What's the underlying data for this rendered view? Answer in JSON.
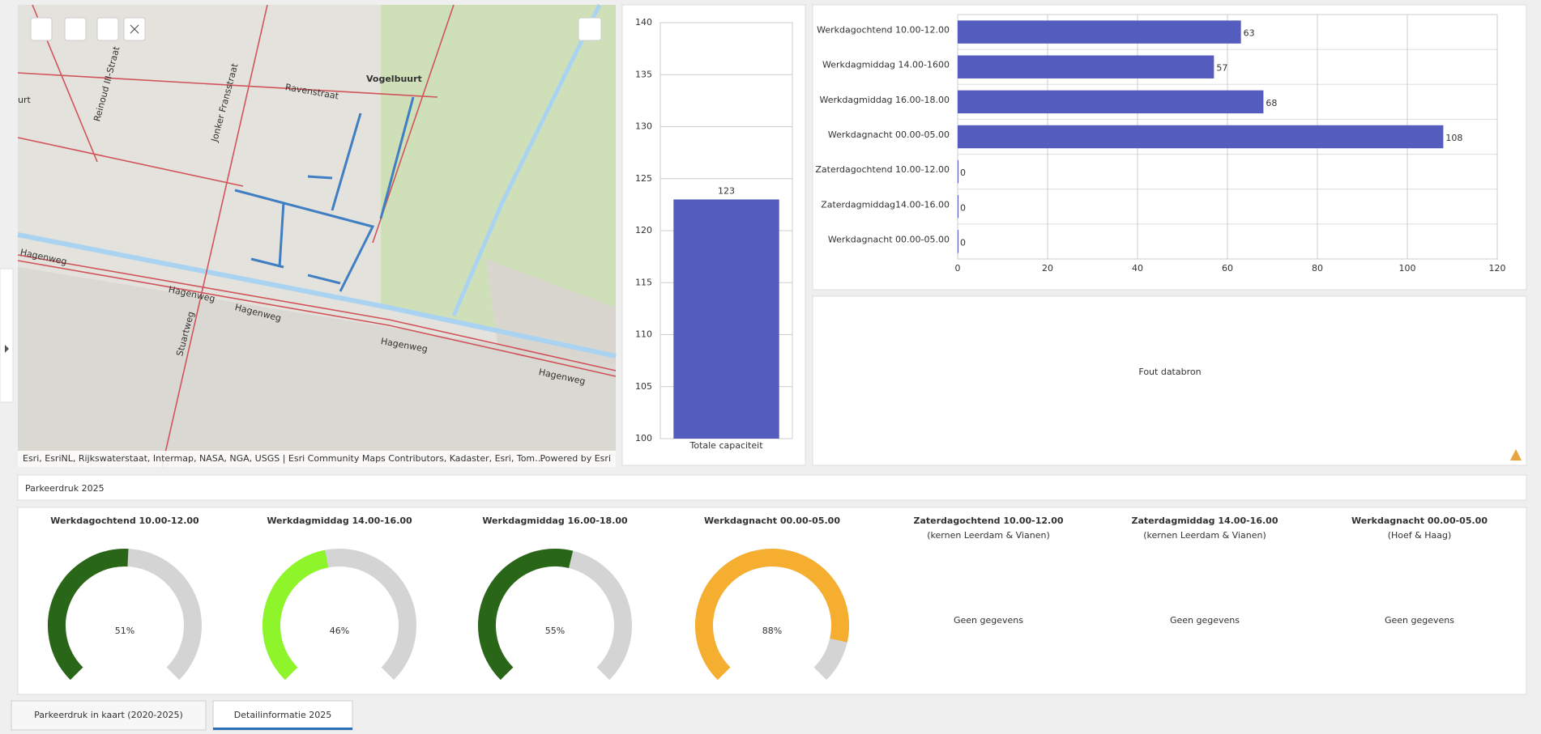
{
  "map": {
    "labels": [
      "Vogelbuurt",
      "Ravenstraat",
      "urt",
      "Reinoud III-Straat",
      "Jonker Fransstraat",
      "Hagenweg",
      "Hagenweg",
      "Hagenweg",
      "Hagenweg",
      "Hagenweg",
      "Stuartweg"
    ],
    "attribution": "Esri, EsriNL, Rijkswaterstaat, Intermap, NASA, NGA, USGS | Esri Community Maps Contributors, Kadaster, Esri, Tom…",
    "powered_by": "Powered by Esri"
  },
  "chart_data": [
    {
      "type": "bar",
      "categories": [
        "Totale capaciteit"
      ],
      "values": [
        123
      ],
      "color": "#545cbd",
      "ylim": [
        100,
        140
      ],
      "yticks": [
        100,
        105,
        110,
        115,
        120,
        125,
        130,
        135,
        140
      ],
      "grid": true
    },
    {
      "type": "hbar",
      "categories": [
        "Werkdagochtend 10.00-12.00",
        "Werkdagmiddag 14.00-1600",
        "Werkdagmiddag 16.00-18.00",
        "Werkdagnacht 00.00-05.00",
        "Zaterdagochtend 10.00-12.00",
        "Zaterdagmiddag14.00-16.00",
        "Werkdagnacht 00.00-05.00"
      ],
      "values": [
        63,
        57,
        68,
        108,
        0,
        0,
        0
      ],
      "color": "#545cbd",
      "xlim": [
        0,
        120
      ],
      "xticks": [
        0,
        20,
        40,
        60,
        80,
        100,
        120
      ],
      "grid": true
    }
  ],
  "error_panel": {
    "message": "Fout databron"
  },
  "section_title": "Parkeerdruk 2025",
  "gauge_range": [
    0,
    100
  ],
  "gauges": [
    {
      "title": "Werkdagochtend 10.00-12.00",
      "value": 51,
      "value_label": "51%",
      "color": "#2a6617"
    },
    {
      "title": "Werkdagmiddag 14.00-16.00",
      "value": 46,
      "value_label": "46%",
      "color": "#8ef52a"
    },
    {
      "title": "Werkdagmiddag 16.00-18.00",
      "value": 55,
      "value_label": "55%",
      "color": "#2a6617"
    },
    {
      "title": "Werkdagnacht 00.00-05.00",
      "value": 88,
      "value_label": "88%",
      "color": "#f5ae2f"
    },
    {
      "title": "Zaterdagochtend 10.00-12.00",
      "subtitle": "(kernen Leerdam & Vianen)",
      "message": "Geen gegevens"
    },
    {
      "title": "Zaterdagmiddag 14.00-16.00",
      "subtitle": "(kernen Leerdam & Vianen)",
      "message": "Geen gegevens"
    },
    {
      "title": "Werkdagnacht 00.00-05.00",
      "subtitle": "(Hoef & Haag)",
      "message": "Geen gegevens"
    }
  ],
  "tabs": [
    "Parkeerdruk in kaart (2020-2025)",
    "Detailinformatie 2025"
  ]
}
